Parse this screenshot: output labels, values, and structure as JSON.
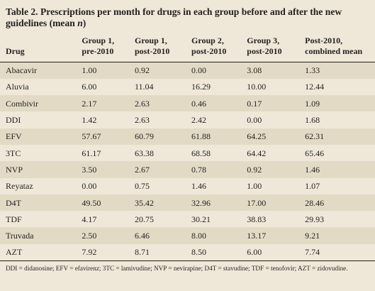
{
  "caption": {
    "prefix": "Table 2.",
    "text": " Prescriptions per month for drugs in each group before and after the new guidelines (mean ",
    "italic": "n",
    "suffix": ")"
  },
  "columns": [
    {
      "line1": "",
      "line2": "Drug"
    },
    {
      "line1": "Group 1,",
      "line2": "pre-2010"
    },
    {
      "line1": "Group 1,",
      "line2": "post-2010"
    },
    {
      "line1": "Group 2,",
      "line2": "post-2010"
    },
    {
      "line1": "Group 3,",
      "line2": "post-2010"
    },
    {
      "line1": "Post-2010,",
      "line2": "combined mean"
    }
  ],
  "rows": [
    [
      "Abacavir",
      "1.00",
      "0.92",
      "0.00",
      "3.08",
      "1.33"
    ],
    [
      "Aluvia",
      "6.00",
      "11.04",
      "16.29",
      "10.00",
      "12.44"
    ],
    [
      "Combivir",
      "2.17",
      "2.63",
      "0.46",
      "0.17",
      "1.09"
    ],
    [
      "DDI",
      "1.42",
      "2.63",
      "2.42",
      "0.00",
      "1.68"
    ],
    [
      "EFV",
      "57.67",
      "60.79",
      "61.88",
      "64.25",
      "62.31"
    ],
    [
      "3TC",
      "61.17",
      "63.38",
      "68.58",
      "64.42",
      "65.46"
    ],
    [
      "NVP",
      "3.50",
      "2.67",
      "0.78",
      "0.92",
      "1.46"
    ],
    [
      "Reyataz",
      "0.00",
      "0.75",
      "1.46",
      "1.00",
      "1.07"
    ],
    [
      "D4T",
      "49.50",
      "35.42",
      "32.96",
      "17.00",
      "28.46"
    ],
    [
      "TDF",
      "4.17",
      "20.75",
      "30.21",
      "38.83",
      "29.93"
    ],
    [
      "Truvada",
      "2.50",
      "6.46",
      "8.00",
      "13.17",
      "9.21"
    ],
    [
      "AZT",
      "7.92",
      "8.71",
      "8.50",
      "6.00",
      "7.74"
    ]
  ],
  "footnote": "DDI = didanosine; EFV = efavirenz; 3TC = lamivudine; NVP = nevirapine; D4T = stavudine; TDF = tenofovir; AZT = zidovudine.",
  "colors": {
    "background": "#efe8d9",
    "shaded_row": "#e3dac6",
    "text": "#231f20"
  }
}
